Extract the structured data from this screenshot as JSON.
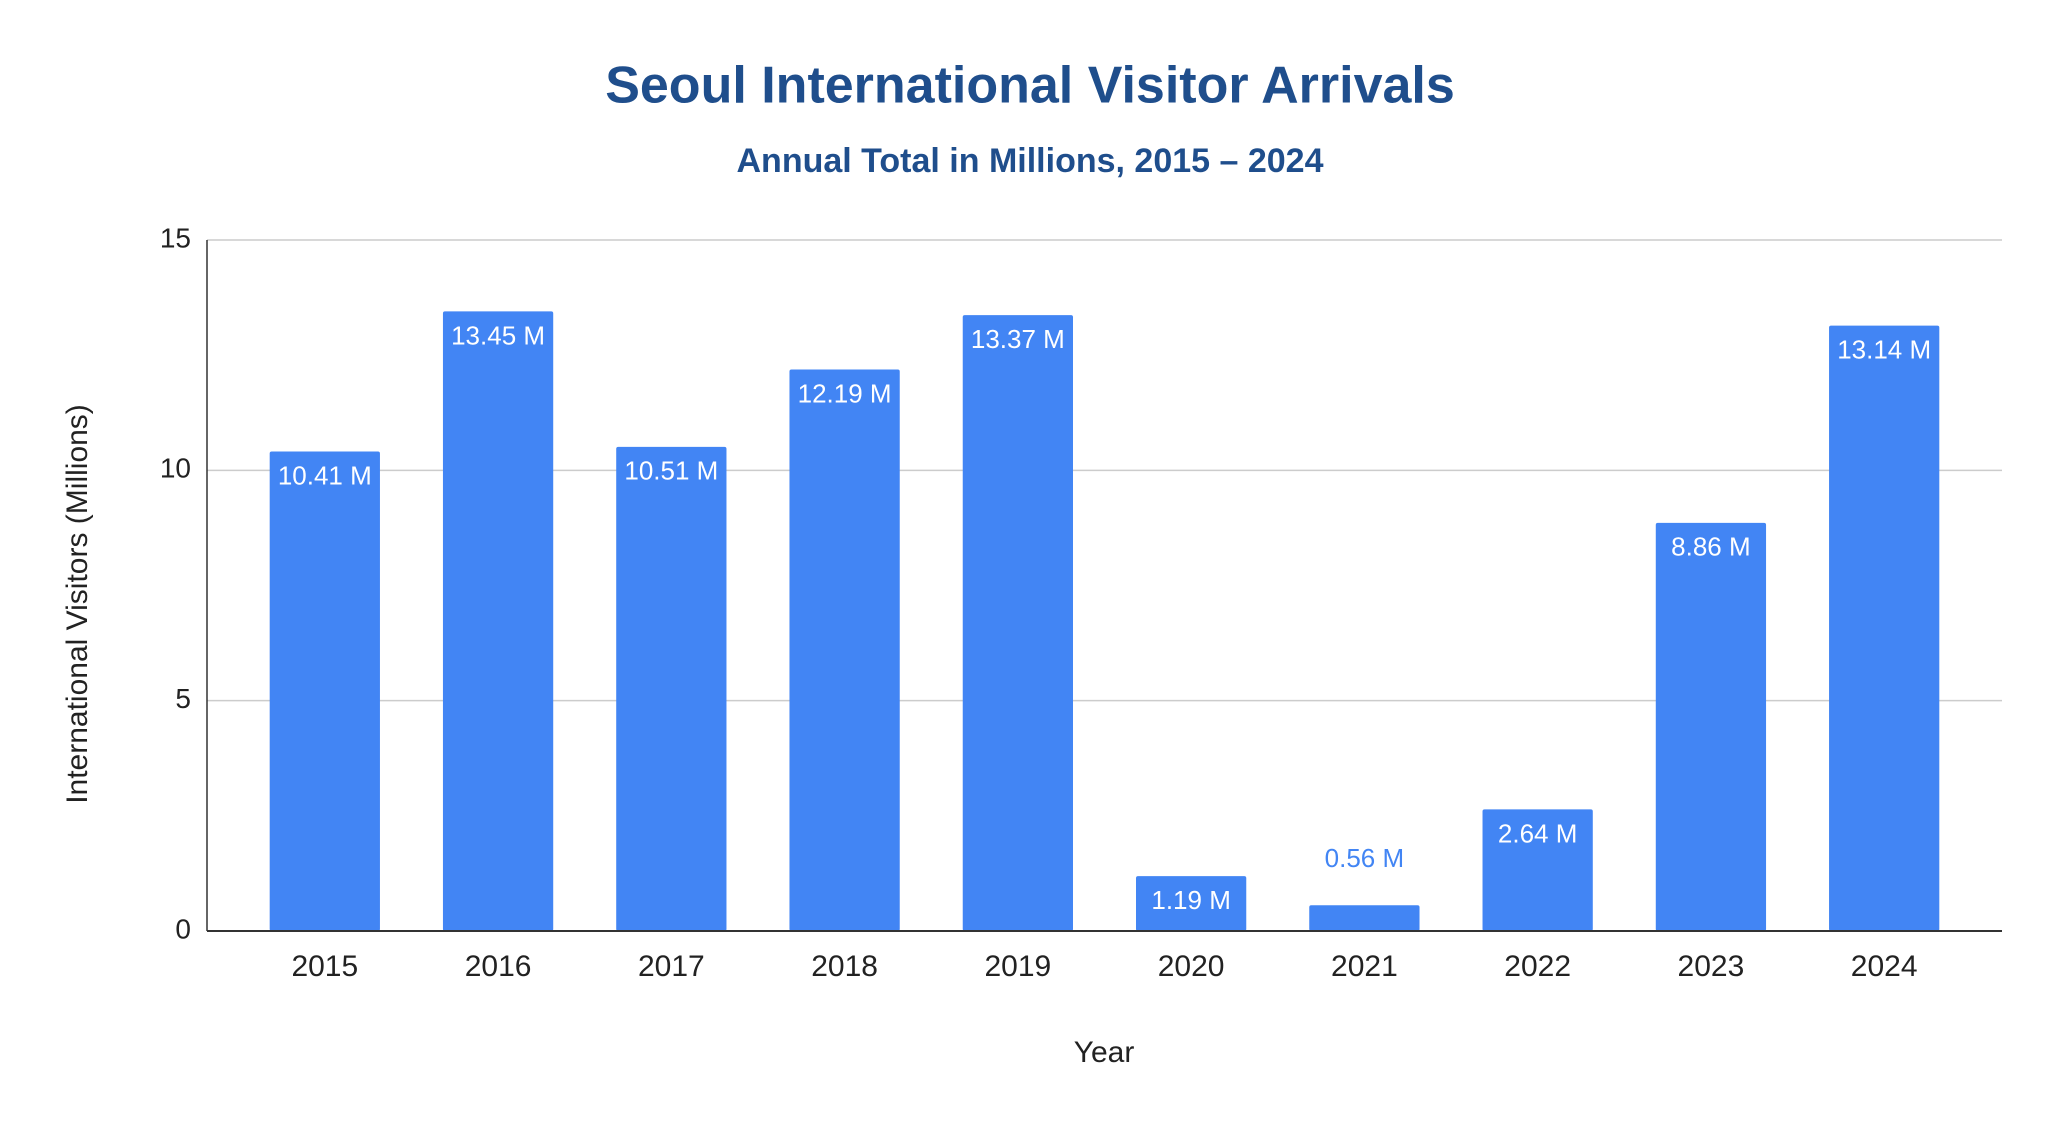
{
  "chart_data": {
    "type": "bar",
    "title": "Seoul International Visitor Arrivals",
    "subtitle": "Annual Total in Millions, 2015 – 2024",
    "x_label": "Year",
    "y_label": "International Visitors (Millions)",
    "categories": [
      "2015",
      "2016",
      "2017",
      "2018",
      "2019",
      "2020",
      "2021",
      "2022",
      "2023",
      "2024"
    ],
    "values": [
      10.41,
      13.45,
      10.51,
      12.19,
      13.37,
      1.19,
      0.56,
      2.64,
      8.86,
      13.14
    ],
    "value_labels": [
      "10.41 M",
      "13.45 M",
      "10.51 M",
      "12.19 M",
      "13.37 M",
      "1.19 M",
      "0.56 M",
      "2.64 M",
      "8.86 M",
      "13.14 M"
    ],
    "color": "#4285f4",
    "ylim": [
      0,
      15
    ],
    "yticks": [
      0,
      5,
      10,
      15
    ],
    "grid": true
  }
}
